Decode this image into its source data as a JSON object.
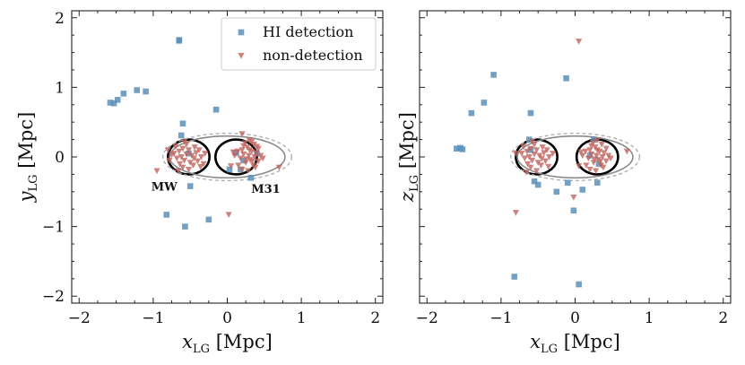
{
  "chart_data": [
    {
      "type": "scatter",
      "panel": "left",
      "xlabel_main": "x",
      "xlabel_sub": "LG",
      "xlabel_unit": " [Mpc]",
      "ylabel_main": "y",
      "ylabel_sub": "LG",
      "ylabel_unit": " [Mpc]",
      "xlim": [
        -2.1,
        2.1
      ],
      "ylim": [
        -2.1,
        2.1
      ],
      "xticks": [
        -2,
        -1,
        0,
        1,
        2
      ],
      "yticks": [
        -2,
        -1,
        0,
        1,
        2
      ],
      "xtick_labels": [
        "−2",
        "−1",
        "0",
        "1",
        "2"
      ],
      "ytick_labels": [
        "−2",
        "−1",
        "0",
        "1",
        "2"
      ],
      "grid": false,
      "legend": {
        "position": "top-right",
        "entries": [
          {
            "label": "HI detection",
            "marker": "square",
            "color": "#5b8fb9"
          },
          {
            "label": "non-detection",
            "marker": "triangle-down",
            "color": "#c0645c"
          }
        ]
      },
      "annotations": [
        {
          "text": "MW",
          "x": -0.85,
          "y": -0.42
        },
        {
          "text": "M31",
          "x": 0.52,
          "y": -0.45
        }
      ],
      "series": [
        {
          "name": "HI detection",
          "marker": "square",
          "color": "#5b8fb9",
          "points": [
            [
              -0.65,
              1.67
            ],
            [
              -0.65,
              1.68
            ],
            [
              -1.58,
              0.78
            ],
            [
              -1.53,
              0.77
            ],
            [
              -1.48,
              0.82
            ],
            [
              -1.4,
              0.91
            ],
            [
              -1.22,
              0.96
            ],
            [
              -1.1,
              0.94
            ],
            [
              -0.15,
              0.68
            ],
            [
              -0.6,
              0.48
            ],
            [
              -0.62,
              0.31
            ],
            [
              -0.52,
              0.05
            ],
            [
              -0.5,
              -0.42
            ],
            [
              -0.82,
              -0.83
            ],
            [
              -0.57,
              -1.0
            ],
            [
              -0.25,
              -0.9
            ],
            [
              0.03,
              -0.18
            ],
            [
              0.12,
              0.06
            ],
            [
              0.22,
              -0.05
            ],
            [
              0.32,
              -0.3
            ],
            [
              0.18,
              -0.18
            ],
            [
              0.4,
              0.05
            ]
          ]
        },
        {
          "name": "non-detection",
          "marker": "triangle-down",
          "color": "#c0645c",
          "points": [
            [
              -0.72,
              0.05
            ],
            [
              -0.68,
              -0.02
            ],
            [
              -0.65,
              0.08
            ],
            [
              -0.62,
              0.0
            ],
            [
              -0.6,
              0.12
            ],
            [
              -0.58,
              -0.05
            ],
            [
              -0.55,
              0.04
            ],
            [
              -0.52,
              0.1
            ],
            [
              -0.5,
              -0.08
            ],
            [
              -0.48,
              0.02
            ],
            [
              -0.45,
              -0.02
            ],
            [
              -0.42,
              0.06
            ],
            [
              -0.6,
              -0.15
            ],
            [
              -0.55,
              0.18
            ],
            [
              -0.64,
              -0.1
            ],
            [
              -0.7,
              0.15
            ],
            [
              -0.46,
              -0.12
            ],
            [
              -0.4,
              -0.06
            ],
            [
              -0.38,
              0.1
            ],
            [
              -0.52,
              -0.18
            ],
            [
              -0.58,
              0.22
            ],
            [
              -0.35,
              0.0
            ],
            [
              -0.3,
              0.05
            ],
            [
              -0.78,
              -0.05
            ],
            [
              -0.75,
              0.03
            ],
            [
              -0.44,
              0.14
            ],
            [
              -0.36,
              -0.14
            ],
            [
              -0.32,
              -0.1
            ],
            [
              -0.66,
              -0.2
            ],
            [
              -0.95,
              -0.2
            ],
            [
              -0.8,
              0.1
            ],
            [
              0.4,
              0.15
            ],
            [
              0.1,
              0.02
            ],
            [
              0.14,
              0.08
            ],
            [
              0.18,
              -0.02
            ],
            [
              0.2,
              0.1
            ],
            [
              0.22,
              0.04
            ],
            [
              0.25,
              -0.08
            ],
            [
              0.27,
              0.14
            ],
            [
              0.29,
              0.02
            ],
            [
              0.31,
              -0.04
            ],
            [
              0.33,
              0.08
            ],
            [
              0.35,
              -0.12
            ],
            [
              0.37,
              0.0
            ],
            [
              0.39,
              0.06
            ],
            [
              0.42,
              -0.06
            ],
            [
              0.45,
              0.02
            ],
            [
              0.24,
              0.2
            ],
            [
              0.3,
              0.24
            ],
            [
              0.36,
              0.18
            ],
            [
              0.15,
              -0.12
            ],
            [
              0.2,
              -0.18
            ],
            [
              0.28,
              -0.2
            ],
            [
              0.33,
              0.22
            ],
            [
              0.42,
              0.12
            ],
            [
              0.48,
              -0.02
            ],
            [
              0.26,
              -0.03
            ],
            [
              0.38,
              -0.15
            ],
            [
              0.22,
              0.16
            ],
            [
              0.3,
              0.1
            ],
            [
              0.34,
              -0.06
            ],
            [
              0.2,
              0.33
            ],
            [
              0.7,
              -0.15
            ],
            [
              0.02,
              -0.83
            ],
            [
              0.05,
              -0.13
            ],
            [
              0.08,
              0.07
            ]
          ]
        }
      ],
      "ellipses": [
        {
          "role": "MW",
          "cx": -0.52,
          "cy": 0.0,
          "rx": 0.28,
          "ry": 0.25,
          "color": "#000000",
          "style": "solid-thick"
        },
        {
          "role": "M31",
          "cx": 0.12,
          "cy": 0.0,
          "rx": 0.28,
          "ry": 0.25,
          "color": "#000000",
          "style": "solid-thick"
        },
        {
          "role": "LG",
          "cx": 0.0,
          "cy": 0.0,
          "rx": 0.78,
          "ry": 0.3,
          "color": "#8a8a8a",
          "style": "solid"
        },
        {
          "role": "LG-outer",
          "cx": 0.0,
          "cy": 0.0,
          "rx": 0.87,
          "ry": 0.34,
          "color": "#b0b0b0",
          "style": "dashed"
        }
      ]
    },
    {
      "type": "scatter",
      "panel": "right",
      "xlabel_main": "x",
      "xlabel_sub": "LG",
      "xlabel_unit": " [Mpc]",
      "ylabel_main": "z",
      "ylabel_sub": "LG",
      "ylabel_unit": " [Mpc]",
      "xlim": [
        -2.1,
        2.1
      ],
      "ylim": [
        -2.1,
        2.1
      ],
      "xticks": [
        -2,
        -1,
        0,
        1,
        2
      ],
      "yticks": [
        -2,
        -1,
        0,
        1,
        2
      ],
      "xtick_labels": [
        "−2",
        "−1",
        "0",
        "1",
        "2"
      ],
      "ytick_labels": [
        "",
        "",
        "",
        "",
        ""
      ],
      "grid": false,
      "series": [
        {
          "name": "HI detection",
          "marker": "square",
          "color": "#5b8fb9",
          "points": [
            [
              -1.6,
              0.12
            ],
            [
              -1.55,
              0.13
            ],
            [
              -1.52,
              0.11
            ],
            [
              -1.4,
              0.63
            ],
            [
              -1.23,
              0.78
            ],
            [
              -1.1,
              1.18
            ],
            [
              -0.12,
              1.13
            ],
            [
              -0.6,
              0.63
            ],
            [
              -0.62,
              0.25
            ],
            [
              -0.6,
              0.1
            ],
            [
              -0.55,
              -0.35
            ],
            [
              -0.5,
              -0.4
            ],
            [
              -0.25,
              -0.5
            ],
            [
              -0.1,
              -0.37
            ],
            [
              -0.02,
              -0.77
            ],
            [
              0.1,
              -0.47
            ],
            [
              0.3,
              -0.37
            ],
            [
              0.25,
              0.25
            ],
            [
              0.2,
              0.02
            ],
            [
              0.32,
              -0.1
            ],
            [
              -0.82,
              -1.72
            ],
            [
              0.05,
              -1.83
            ]
          ]
        },
        {
          "name": "non-detection",
          "marker": "triangle-down",
          "color": "#c0645c",
          "points": [
            [
              0.05,
              1.66
            ],
            [
              -0.72,
              0.05
            ],
            [
              -0.68,
              -0.02
            ],
            [
              -0.65,
              0.08
            ],
            [
              -0.62,
              0.0
            ],
            [
              -0.6,
              0.12
            ],
            [
              -0.58,
              -0.05
            ],
            [
              -0.55,
              0.04
            ],
            [
              -0.52,
              0.1
            ],
            [
              -0.5,
              -0.08
            ],
            [
              -0.48,
              0.02
            ],
            [
              -0.45,
              -0.02
            ],
            [
              -0.42,
              0.06
            ],
            [
              -0.6,
              -0.15
            ],
            [
              -0.55,
              0.18
            ],
            [
              -0.64,
              -0.1
            ],
            [
              -0.7,
              0.15
            ],
            [
              -0.46,
              -0.12
            ],
            [
              -0.4,
              -0.06
            ],
            [
              -0.38,
              0.1
            ],
            [
              -0.52,
              -0.2
            ],
            [
              -0.58,
              0.22
            ],
            [
              -0.35,
              0.0
            ],
            [
              -0.3,
              0.05
            ],
            [
              -0.44,
              0.14
            ],
            [
              -0.36,
              -0.14
            ],
            [
              -0.66,
              -0.22
            ],
            [
              -0.8,
              0.05
            ],
            [
              0.1,
              0.02
            ],
            [
              0.14,
              0.08
            ],
            [
              0.18,
              -0.02
            ],
            [
              0.2,
              0.1
            ],
            [
              0.22,
              0.04
            ],
            [
              0.25,
              -0.08
            ],
            [
              0.27,
              0.14
            ],
            [
              0.29,
              0.02
            ],
            [
              0.31,
              -0.04
            ],
            [
              0.33,
              0.08
            ],
            [
              0.35,
              -0.12
            ],
            [
              0.37,
              0.0
            ],
            [
              0.39,
              0.06
            ],
            [
              0.42,
              -0.06
            ],
            [
              0.45,
              0.02
            ],
            [
              0.24,
              0.2
            ],
            [
              0.3,
              0.24
            ],
            [
              0.36,
              0.18
            ],
            [
              0.15,
              -0.12
            ],
            [
              0.2,
              -0.18
            ],
            [
              0.28,
              -0.2
            ],
            [
              0.42,
              0.12
            ],
            [
              0.48,
              -0.02
            ],
            [
              0.26,
              -0.03
            ],
            [
              0.38,
              -0.15
            ],
            [
              0.22,
              0.16
            ],
            [
              0.3,
              0.1
            ],
            [
              0.34,
              -0.06
            ],
            [
              0.7,
              0.08
            ],
            [
              -0.8,
              -0.8
            ],
            [
              -0.02,
              -0.58
            ],
            [
              0.05,
              -0.13
            ],
            [
              0.08,
              0.07
            ]
          ]
        }
      ],
      "ellipses": [
        {
          "role": "MW",
          "cx": -0.52,
          "cy": 0.0,
          "rx": 0.28,
          "ry": 0.25,
          "color": "#000000",
          "style": "solid-thick"
        },
        {
          "role": "M31",
          "cx": 0.3,
          "cy": 0.0,
          "rx": 0.28,
          "ry": 0.25,
          "color": "#000000",
          "style": "solid-thick"
        },
        {
          "role": "LG",
          "cx": 0.0,
          "cy": 0.0,
          "rx": 0.78,
          "ry": 0.3,
          "color": "#8a8a8a",
          "style": "solid"
        },
        {
          "role": "LG-outer",
          "cx": 0.0,
          "cy": 0.0,
          "rx": 0.87,
          "ry": 0.34,
          "color": "#b0b0b0",
          "style": "dashed"
        }
      ]
    }
  ]
}
